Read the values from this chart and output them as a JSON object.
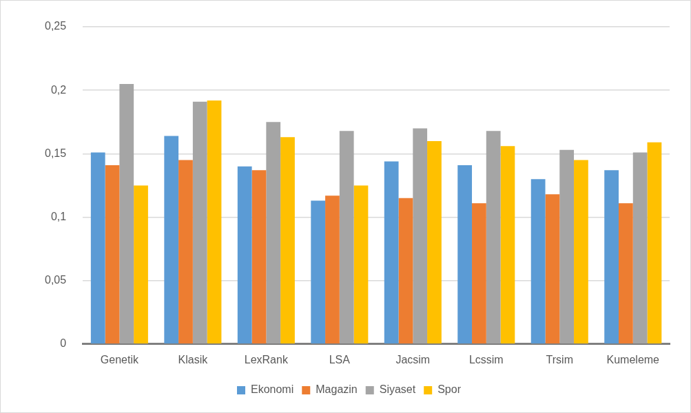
{
  "chart_data": {
    "type": "bar",
    "categories": [
      "Genetik",
      "Klasik",
      "LexRank",
      "LSA",
      "Jacsim",
      "Lcssim",
      "Trsim",
      "Kumeleme"
    ],
    "series": [
      {
        "name": "Ekonomi",
        "color": "#5b9bd5",
        "values": [
          0.151,
          0.164,
          0.14,
          0.113,
          0.144,
          0.141,
          0.13,
          0.137
        ]
      },
      {
        "name": "Magazin",
        "color": "#ed7d31",
        "values": [
          0.141,
          0.145,
          0.137,
          0.117,
          0.115,
          0.111,
          0.118,
          0.111
        ]
      },
      {
        "name": "Siyaset",
        "color": "#a5a5a5",
        "values": [
          0.205,
          0.191,
          0.175,
          0.168,
          0.17,
          0.168,
          0.153,
          0.151
        ]
      },
      {
        "name": "Spor",
        "color": "#ffc000",
        "values": [
          0.125,
          0.192,
          0.163,
          0.125,
          0.16,
          0.156,
          0.145,
          0.159
        ]
      }
    ],
    "ylim": [
      0,
      0.25
    ],
    "yticks": [
      0,
      {
        "value": 0.05,
        "label": "0,05"
      },
      {
        "value": 0.1,
        "label": "0,1"
      },
      {
        "value": 0.15,
        "label": "0,15"
      },
      {
        "value": 0.2,
        "label": "0,2"
      },
      {
        "value": 0.25,
        "label": "0,25"
      }
    ],
    "grid": "y",
    "legend": "bottom"
  }
}
